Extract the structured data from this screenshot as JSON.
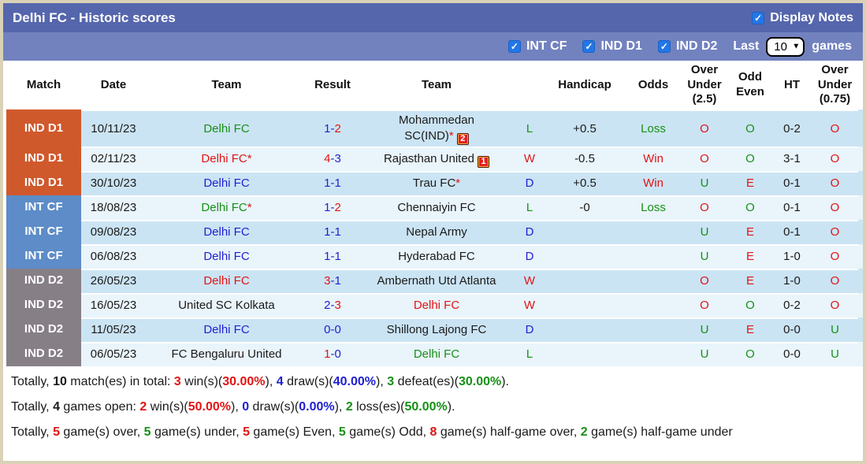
{
  "palette": {
    "k": "#1a1a1a",
    "r": "#e11414",
    "g": "#169016",
    "b": "#1f1fd1"
  },
  "header": {
    "title": "Delhi FC - Historic scores",
    "display_notes": "Display Notes"
  },
  "filters": {
    "items": [
      "INT CF",
      "IND D1",
      "IND D2"
    ],
    "last": "Last",
    "selected": "10",
    "games": "games"
  },
  "table": {
    "columns": [
      "Match",
      "Date",
      "Team",
      "Result",
      "Team",
      "",
      "Handicap",
      "Odds",
      "Over Under (2.5)",
      "Odd Even",
      "HT",
      "Over Under (0.75)"
    ],
    "row_bg_dark": "#cbe4f4",
    "row_bg_light": "#e9f4fb",
    "rows": [
      {
        "league": "IND D1",
        "lbg": "#d0592c",
        "date": "10/11/23",
        "t1": {
          "n": "Delhi FC",
          "c": "g"
        },
        "s1": "1",
        "s1c": "b",
        "s2": "2",
        "s2c": "r",
        "t2": {
          "n": "Mohammedan SC(IND)",
          "c": "k",
          "ast": "r",
          "badge": "2",
          "wrap": true
        },
        "wdl": "L",
        "wdlc": "g",
        "hcp": "+0.5",
        "odds": "Loss",
        "oddsc": "g",
        "ou25": "O",
        "ou25c": "r",
        "oe": "O",
        "oec": "g",
        "ht": "0-2",
        "ou075": "O",
        "ou075c": "r"
      },
      {
        "league": "IND D1",
        "lbg": "#d0592c",
        "date": "02/11/23",
        "t1": {
          "n": "Delhi FC",
          "c": "r",
          "ast": "r"
        },
        "s1": "4",
        "s1c": "r",
        "s2": "3",
        "s2c": "b",
        "t2": {
          "n": "Rajasthan United",
          "c": "k",
          "badge": "1"
        },
        "wdl": "W",
        "wdlc": "r",
        "hcp": "-0.5",
        "odds": "Win",
        "oddsc": "r",
        "ou25": "O",
        "ou25c": "r",
        "oe": "O",
        "oec": "g",
        "ht": "3-1",
        "ou075": "O",
        "ou075c": "r"
      },
      {
        "league": "IND D1",
        "lbg": "#d0592c",
        "date": "30/10/23",
        "t1": {
          "n": "Delhi FC",
          "c": "b"
        },
        "s1": "1",
        "s1c": "b",
        "s2": "1",
        "s2c": "b",
        "t2": {
          "n": "Trau FC",
          "c": "k",
          "ast": "r"
        },
        "wdl": "D",
        "wdlc": "b",
        "hcp": "+0.5",
        "odds": "Win",
        "oddsc": "r",
        "ou25": "U",
        "ou25c": "g",
        "oe": "E",
        "oec": "r",
        "ht": "0-1",
        "ou075": "O",
        "ou075c": "r"
      },
      {
        "league": "INT CF",
        "lbg": "#5d8cc8",
        "date": "18/08/23",
        "t1": {
          "n": "Delhi FC",
          "c": "g",
          "ast": "r"
        },
        "s1": "1",
        "s1c": "b",
        "s2": "2",
        "s2c": "r",
        "t2": {
          "n": "Chennaiyin FC",
          "c": "k"
        },
        "wdl": "L",
        "wdlc": "g",
        "hcp": "-0",
        "odds": "Loss",
        "oddsc": "g",
        "ou25": "O",
        "ou25c": "r",
        "oe": "O",
        "oec": "g",
        "ht": "0-1",
        "ou075": "O",
        "ou075c": "r"
      },
      {
        "league": "INT CF",
        "lbg": "#5d8cc8",
        "date": "09/08/23",
        "t1": {
          "n": "Delhi FC",
          "c": "b"
        },
        "s1": "1",
        "s1c": "b",
        "s2": "1",
        "s2c": "b",
        "t2": {
          "n": "Nepal Army",
          "c": "k"
        },
        "wdl": "D",
        "wdlc": "b",
        "hcp": "",
        "odds": "",
        "oddsc": "k",
        "ou25": "U",
        "ou25c": "g",
        "oe": "E",
        "oec": "r",
        "ht": "0-1",
        "ou075": "O",
        "ou075c": "r"
      },
      {
        "league": "INT CF",
        "lbg": "#5d8cc8",
        "date": "06/08/23",
        "t1": {
          "n": "Delhi FC",
          "c": "b"
        },
        "s1": "1",
        "s1c": "b",
        "s2": "1",
        "s2c": "b",
        "t2": {
          "n": "Hyderabad FC",
          "c": "k"
        },
        "wdl": "D",
        "wdlc": "b",
        "hcp": "",
        "odds": "",
        "oddsc": "k",
        "ou25": "U",
        "ou25c": "g",
        "oe": "E",
        "oec": "r",
        "ht": "1-0",
        "ou075": "O",
        "ou075c": "r"
      },
      {
        "league": "IND D2",
        "lbg": "#877f86",
        "date": "26/05/23",
        "t1": {
          "n": "Delhi FC",
          "c": "r"
        },
        "s1": "3",
        "s1c": "r",
        "s2": "1",
        "s2c": "b",
        "t2": {
          "n": "Ambernath Utd Atlanta",
          "c": "k"
        },
        "wdl": "W",
        "wdlc": "r",
        "hcp": "",
        "odds": "",
        "oddsc": "k",
        "ou25": "O",
        "ou25c": "r",
        "oe": "E",
        "oec": "r",
        "ht": "1-0",
        "ou075": "O",
        "ou075c": "r"
      },
      {
        "league": "IND D2",
        "lbg": "#877f86",
        "date": "16/05/23",
        "t1": {
          "n": "United SC Kolkata",
          "c": "k"
        },
        "s1": "2",
        "s1c": "b",
        "s2": "3",
        "s2c": "r",
        "t2": {
          "n": "Delhi FC",
          "c": "r"
        },
        "wdl": "W",
        "wdlc": "r",
        "hcp": "",
        "odds": "",
        "oddsc": "k",
        "ou25": "O",
        "ou25c": "r",
        "oe": "O",
        "oec": "g",
        "ht": "0-2",
        "ou075": "O",
        "ou075c": "r"
      },
      {
        "league": "IND D2",
        "lbg": "#877f86",
        "date": "11/05/23",
        "t1": {
          "n": "Delhi FC",
          "c": "b"
        },
        "s1": "0",
        "s1c": "b",
        "s2": "0",
        "s2c": "b",
        "t2": {
          "n": "Shillong Lajong FC",
          "c": "k"
        },
        "wdl": "D",
        "wdlc": "b",
        "hcp": "",
        "odds": "",
        "oddsc": "k",
        "ou25": "U",
        "ou25c": "g",
        "oe": "E",
        "oec": "r",
        "ht": "0-0",
        "ou075": "U",
        "ou075c": "g"
      },
      {
        "league": "IND D2",
        "lbg": "#877f86",
        "date": "06/05/23",
        "t1": {
          "n": "FC Bengaluru United",
          "c": "k"
        },
        "s1": "1",
        "s1c": "r",
        "s2": "0",
        "s2c": "b",
        "t2": {
          "n": "Delhi FC",
          "c": "g"
        },
        "wdl": "L",
        "wdlc": "g",
        "hcp": "",
        "odds": "",
        "oddsc": "k",
        "ou25": "U",
        "ou25c": "g",
        "oe": "O",
        "oec": "g",
        "ht": "0-0",
        "ou075": "U",
        "ou075c": "g"
      }
    ]
  },
  "summary": [
    [
      {
        "t": "Totally, ",
        "c": "k",
        "b": 0
      },
      {
        "t": "10",
        "c": "k",
        "b": 1
      },
      {
        "t": " match(es) in total: ",
        "c": "k",
        "b": 0
      },
      {
        "t": "3",
        "c": "r",
        "b": 1
      },
      {
        "t": " win(s)(",
        "c": "k",
        "b": 0
      },
      {
        "t": "30.00%",
        "c": "r",
        "b": 1
      },
      {
        "t": "), ",
        "c": "k",
        "b": 0
      },
      {
        "t": "4",
        "c": "b",
        "b": 1
      },
      {
        "t": " draw(s)(",
        "c": "k",
        "b": 0
      },
      {
        "t": "40.00%",
        "c": "b",
        "b": 1
      },
      {
        "t": "), ",
        "c": "k",
        "b": 0
      },
      {
        "t": "3",
        "c": "g",
        "b": 1
      },
      {
        "t": " defeat(es)(",
        "c": "k",
        "b": 0
      },
      {
        "t": "30.00%",
        "c": "g",
        "b": 1
      },
      {
        "t": ").",
        "c": "k",
        "b": 0
      }
    ],
    [
      {
        "t": "Totally, ",
        "c": "k",
        "b": 0
      },
      {
        "t": "4",
        "c": "k",
        "b": 1
      },
      {
        "t": " games open: ",
        "c": "k",
        "b": 0
      },
      {
        "t": "2",
        "c": "r",
        "b": 1
      },
      {
        "t": " win(s)(",
        "c": "k",
        "b": 0
      },
      {
        "t": "50.00%",
        "c": "r",
        "b": 1
      },
      {
        "t": "), ",
        "c": "k",
        "b": 0
      },
      {
        "t": "0",
        "c": "b",
        "b": 1
      },
      {
        "t": " draw(s)(",
        "c": "k",
        "b": 0
      },
      {
        "t": "0.00%",
        "c": "b",
        "b": 1
      },
      {
        "t": "), ",
        "c": "k",
        "b": 0
      },
      {
        "t": "2",
        "c": "g",
        "b": 1
      },
      {
        "t": " loss(es)(",
        "c": "k",
        "b": 0
      },
      {
        "t": "50.00%",
        "c": "g",
        "b": 1
      },
      {
        "t": ").",
        "c": "k",
        "b": 0
      }
    ],
    [
      {
        "t": "Totally, ",
        "c": "k",
        "b": 0
      },
      {
        "t": "5",
        "c": "r",
        "b": 1
      },
      {
        "t": " game(s) over, ",
        "c": "k",
        "b": 0
      },
      {
        "t": "5",
        "c": "g",
        "b": 1
      },
      {
        "t": " game(s) under, ",
        "c": "k",
        "b": 0
      },
      {
        "t": "5",
        "c": "r",
        "b": 1
      },
      {
        "t": " game(s) Even, ",
        "c": "k",
        "b": 0
      },
      {
        "t": "5",
        "c": "g",
        "b": 1
      },
      {
        "t": " game(s) Odd, ",
        "c": "k",
        "b": 0
      },
      {
        "t": "8",
        "c": "r",
        "b": 1
      },
      {
        "t": " game(s) half-game over, ",
        "c": "k",
        "b": 0
      },
      {
        "t": "2",
        "c": "g",
        "b": 1
      },
      {
        "t": " game(s) half-game under",
        "c": "k",
        "b": 0
      }
    ]
  ]
}
